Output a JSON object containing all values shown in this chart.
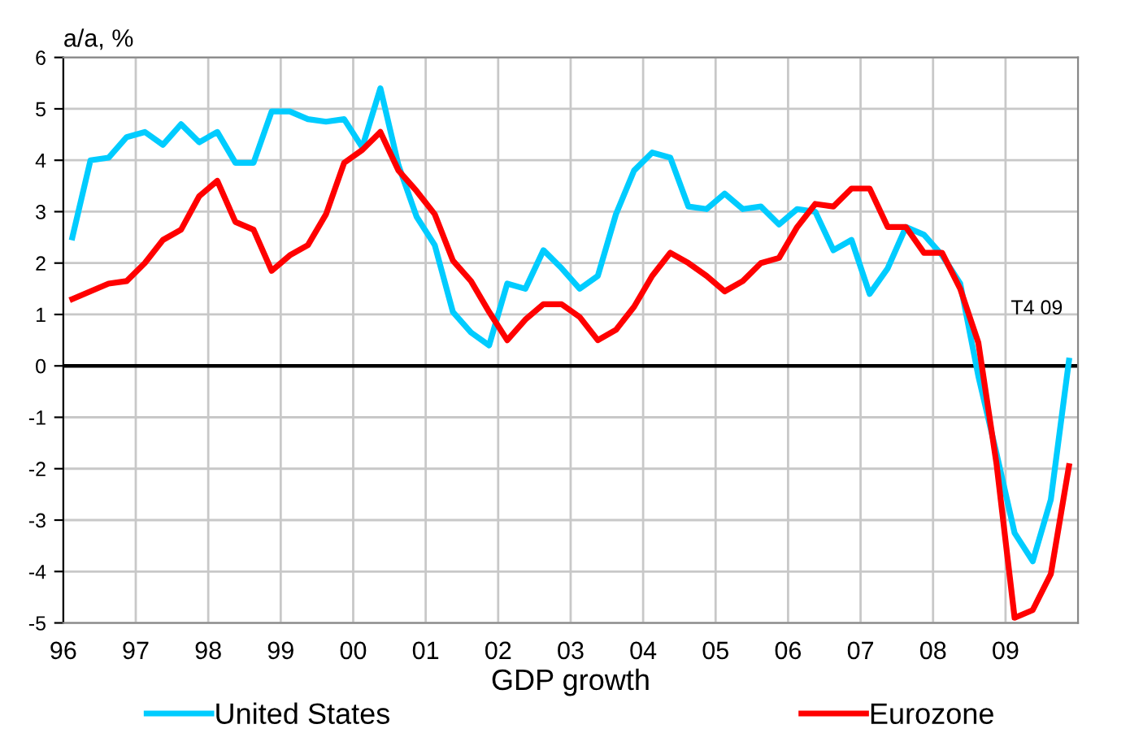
{
  "chart_data": {
    "type": "line",
    "ylabel": "a/a, %",
    "xlabel": "GDP growth",
    "x": [
      1996.125,
      1996.375,
      1996.625,
      1996.875,
      1997.125,
      1997.375,
      1997.625,
      1997.875,
      1998.125,
      1998.375,
      1998.625,
      1998.875,
      1999.125,
      1999.375,
      1999.625,
      1999.875,
      2000.125,
      2000.375,
      2000.625,
      2000.875,
      2001.125,
      2001.375,
      2001.625,
      2001.875,
      2002.125,
      2002.375,
      2002.625,
      2002.875,
      2003.125,
      2003.375,
      2003.625,
      2003.875,
      2004.125,
      2004.375,
      2004.625,
      2004.875,
      2005.125,
      2005.375,
      2005.625,
      2005.875,
      2006.125,
      2006.375,
      2006.625,
      2006.875,
      2007.125,
      2007.375,
      2007.625,
      2007.875,
      2008.125,
      2008.375,
      2008.625,
      2008.875,
      2009.125,
      2009.375,
      2009.625,
      2009.875
    ],
    "series": [
      {
        "name": "United States",
        "color": "#00ccff",
        "values": [
          2.5,
          4.0,
          4.05,
          4.45,
          4.55,
          4.3,
          4.7,
          4.35,
          4.55,
          3.95,
          3.95,
          4.95,
          4.95,
          4.8,
          4.75,
          4.8,
          4.25,
          5.4,
          3.9,
          2.9,
          2.35,
          1.05,
          0.65,
          0.4,
          1.6,
          1.5,
          2.25,
          1.9,
          1.5,
          1.75,
          2.95,
          3.8,
          4.15,
          4.05,
          3.1,
          3.05,
          3.35,
          3.05,
          3.1,
          2.75,
          3.05,
          3.0,
          2.25,
          2.45,
          1.4,
          1.9,
          2.7,
          2.55,
          2.15,
          1.6,
          -0.2,
          -1.7,
          -3.25,
          -3.8,
          -2.6,
          0.1
        ]
      },
      {
        "name": "Eurozone",
        "color": "#ff0000",
        "values": [
          1.3,
          1.45,
          1.6,
          1.65,
          2.0,
          2.45,
          2.65,
          3.3,
          3.6,
          2.8,
          2.65,
          1.85,
          2.15,
          2.35,
          2.95,
          3.95,
          4.2,
          4.55,
          3.8,
          3.4,
          2.95,
          2.05,
          1.65,
          1.05,
          0.5,
          0.9,
          1.2,
          1.2,
          0.95,
          0.5,
          0.7,
          1.15,
          1.75,
          2.2,
          2.0,
          1.75,
          1.45,
          1.65,
          2.0,
          2.1,
          2.7,
          3.15,
          3.1,
          3.45,
          3.45,
          2.7,
          2.7,
          2.2,
          2.2,
          1.5,
          0.45,
          -1.9,
          -4.9,
          -4.75,
          -4.05,
          -1.95
        ]
      }
    ],
    "xlim": [
      1996,
      2010
    ],
    "xticks": [
      {
        "value": 1996,
        "label": "96"
      },
      {
        "value": 1997,
        "label": "97"
      },
      {
        "value": 1998,
        "label": "98"
      },
      {
        "value": 1999,
        "label": "99"
      },
      {
        "value": 2000,
        "label": "00"
      },
      {
        "value": 2001,
        "label": "01"
      },
      {
        "value": 2002,
        "label": "02"
      },
      {
        "value": 2003,
        "label": "03"
      },
      {
        "value": 2004,
        "label": "04"
      },
      {
        "value": 2005,
        "label": "05"
      },
      {
        "value": 2006,
        "label": "06"
      },
      {
        "value": 2007,
        "label": "07"
      },
      {
        "value": 2008,
        "label": "08"
      },
      {
        "value": 2009,
        "label": "09"
      }
    ],
    "ylim": [
      -5,
      6
    ],
    "yticks": [
      -5,
      -4,
      -3,
      -2,
      -1,
      0,
      1,
      2,
      3,
      4,
      5,
      6
    ],
    "ref_lines": [
      {
        "axis": "y",
        "value": 0,
        "color": "#000000"
      }
    ],
    "annotations": [
      "T4 09"
    ],
    "grid": true,
    "legend": "bottom",
    "marker": "none",
    "line_style": "solid"
  }
}
